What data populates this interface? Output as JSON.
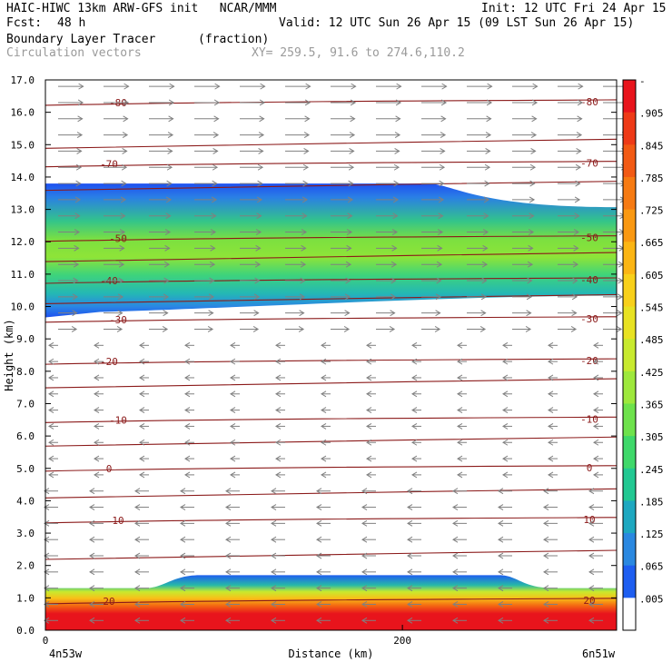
{
  "header": {
    "line1_left": "HAIC-HIWC 13km ARW-GFS init   NCAR/MMM",
    "line1_right": "Init: 12 UTC Fri 24 Apr 15",
    "line2_left_label": "Fcst:",
    "line2_left_value": "48 h",
    "line2_right": "Valid: 12 UTC Sun 26 Apr 15 (09 LST Sun 26 Apr 15)",
    "field_name": "Boundary Layer Tracer",
    "field_units": "(fraction)",
    "vector_name": "Circulation vectors",
    "xsec_coords": "XY= 259.5, 91.6 to 274.6,110.2"
  },
  "chart_data": {
    "type": "heatmap",
    "title": "Boundary Layer Tracer (fraction)",
    "xlabel": "Distance (km)",
    "ylabel": "Height (km)",
    "xlim": [
      0,
      320
    ],
    "ylim": [
      0,
      17
    ],
    "x_ticks": [
      0,
      200
    ],
    "x_end_labels": {
      "left": "4n53w",
      "right": "6n51w"
    },
    "y_ticks": [
      "0.0",
      "1.0",
      "2.0",
      "3.0",
      "4.0",
      "5.0",
      "6.0",
      "7.0",
      "8.0",
      "9.0",
      "10.0",
      "11.0",
      "12.0",
      "13.0",
      "14.0",
      "15.0",
      "16.0",
      "17.0"
    ],
    "colorbar": {
      "labels": [
        "-",
        ".905",
        ".845",
        ".785",
        ".725",
        ".665",
        ".605",
        ".545",
        ".485",
        ".425",
        ".365",
        ".305",
        ".245",
        ".185",
        ".125",
        ".065",
        ".005"
      ],
      "colors": [
        "#e8141c",
        "#ee3a17",
        "#f25a14",
        "#f67a12",
        "#f99812",
        "#fbb514",
        "#f8d01a",
        "#e8e222",
        "#c8ea2e",
        "#9ee83c",
        "#6ee24c",
        "#3fd86a",
        "#22c892",
        "#1ea8c0",
        "#2a88e0",
        "#1e5ef0",
        "#ffffff"
      ]
    },
    "tracer_layers": [
      {
        "name": "upper plume",
        "base_km": 10.0,
        "top_km": 13.8,
        "core_fraction": 0.36
      },
      {
        "name": "boundary layer",
        "base_km": 0.0,
        "top_km": 1.7,
        "core_fraction": 0.95
      }
    ],
    "contours": [
      {
        "label": "-80",
        "height_km": 16.3
      },
      {
        "label": "-70",
        "height_km": 14.4
      },
      {
        "label": "-50",
        "height_km": 12.1
      },
      {
        "label": "-40",
        "height_km": 10.8
      },
      {
        "label": "-30",
        "height_km": 9.6
      },
      {
        "label": "-20",
        "height_km": 8.3
      },
      {
        "label": "-10",
        "height_km": 6.5
      },
      {
        "label": "0",
        "height_km": 5.0
      },
      {
        "label": "10",
        "height_km": 3.4
      },
      {
        "label": "20",
        "height_km": 0.9
      }
    ],
    "extra_contour_heights_km": [
      15.0,
      13.7,
      11.5,
      10.2,
      7.6,
      5.8,
      4.2,
      2.3
    ],
    "contour_color": "#8b1a1a",
    "vector_color": "#808080"
  }
}
